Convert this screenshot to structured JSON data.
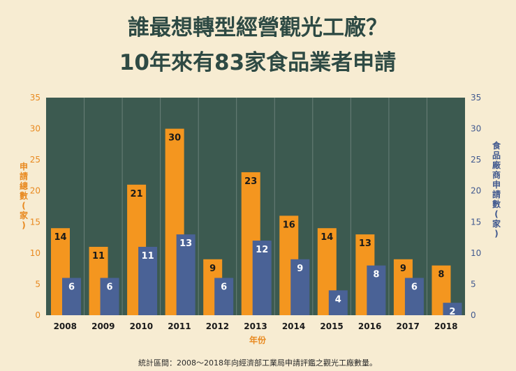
{
  "chart_data": {
    "type": "bar",
    "title": [
      "誰最想轉型經營觀光工廠？",
      "10年來有83家食品業者申請"
    ],
    "categories": [
      "2008",
      "2009",
      "2010",
      "2011",
      "2012",
      "2013",
      "2014",
      "2015",
      "2016",
      "2017",
      "2018"
    ],
    "series": [
      {
        "name": "申請總數(家)",
        "axis": "left",
        "color": "#f4961f",
        "values": [
          14,
          11,
          21,
          30,
          9,
          23,
          16,
          14,
          13,
          9,
          8
        ]
      },
      {
        "name": "食品廠商申請數(家)",
        "axis": "right",
        "color": "#4a6296",
        "values": [
          6,
          6,
          11,
          13,
          6,
          12,
          9,
          4,
          8,
          6,
          2
        ]
      }
    ],
    "ylim": [
      0,
      35
    ],
    "yticks": [
      0,
      5,
      10,
      15,
      20,
      25,
      30,
      35
    ],
    "y2lim": [
      0,
      35
    ],
    "xlabel": "年份",
    "ylabel": "申請總數(家)",
    "y2label": "食品廠商申請數(家)",
    "grid": "vertical",
    "plot_background": "#3c5a50",
    "note": "統計區間：2008～2018年向經濟部工業局申請評鑑之觀光工廠數量。"
  }
}
